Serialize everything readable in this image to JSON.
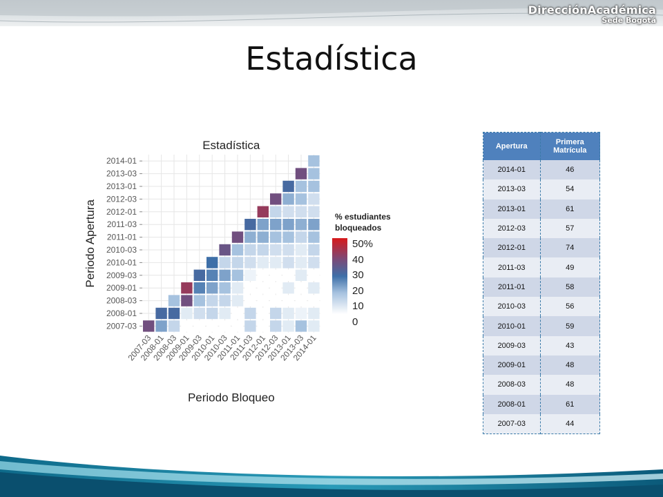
{
  "brand": {
    "name": "DirecciónAcadémica",
    "sub": "Sede Bogotá"
  },
  "slide_title": "Estadística",
  "chart_data": {
    "type": "heatmap",
    "title": "Estadística",
    "xlabel": "Periodo Bloqueo",
    "ylabel": "Periodo Apertura",
    "periods": [
      "2007-03",
      "2008-01",
      "2008-03",
      "2009-01",
      "2009-03",
      "2010-01",
      "2010-03",
      "2011-01",
      "2011-03",
      "2012-01",
      "2012-03",
      "2013-01",
      "2013-03",
      "2014-01"
    ],
    "legend_title": [
      "% estudiantes",
      "bloqueados"
    ],
    "legend_labels": [
      "50%",
      "40",
      "30",
      "20",
      "10",
      "0"
    ],
    "color_scale": {
      "zero": "#ffffff",
      "low": "#a6c2df",
      "mid": "#3e6fa8",
      "high": "#7a4a78",
      "max": "#d7191c"
    },
    "rows": [
      {
        "apertura": "2007-03",
        "values": [
          40,
          20,
          10,
          0,
          0,
          0,
          0,
          0,
          10,
          0,
          10,
          5,
          15,
          5
        ]
      },
      {
        "apertura": "2008-01",
        "values": [
          null,
          30,
          30,
          5,
          8,
          10,
          5,
          0,
          10,
          0,
          10,
          5,
          3,
          5
        ]
      },
      {
        "apertura": "2008-03",
        "values": [
          null,
          null,
          15,
          40,
          15,
          10,
          10,
          5,
          0,
          0,
          0,
          0,
          0,
          0
        ]
      },
      {
        "apertura": "2009-01",
        "values": [
          null,
          null,
          null,
          45,
          25,
          20,
          15,
          5,
          0,
          0,
          0,
          5,
          0,
          5
        ]
      },
      {
        "apertura": "2009-03",
        "values": [
          null,
          null,
          null,
          null,
          30,
          25,
          20,
          15,
          3,
          0,
          0,
          0,
          5,
          0
        ]
      },
      {
        "apertura": "2010-01",
        "values": [
          null,
          null,
          null,
          null,
          null,
          28,
          10,
          10,
          8,
          5,
          5,
          8,
          5,
          8
        ]
      },
      {
        "apertura": "2010-03",
        "values": [
          null,
          null,
          null,
          null,
          null,
          null,
          38,
          15,
          10,
          10,
          8,
          8,
          5,
          10
        ]
      },
      {
        "apertura": "2011-01",
        "values": [
          null,
          null,
          null,
          null,
          null,
          null,
          null,
          40,
          18,
          18,
          15,
          15,
          10,
          15
        ]
      },
      {
        "apertura": "2011-03",
        "values": [
          null,
          null,
          null,
          null,
          null,
          null,
          null,
          null,
          30,
          20,
          20,
          20,
          18,
          20
        ]
      },
      {
        "apertura": "2012-01",
        "values": [
          null,
          null,
          null,
          null,
          null,
          null,
          null,
          null,
          null,
          45,
          10,
          8,
          8,
          8
        ]
      },
      {
        "apertura": "2012-03",
        "values": [
          null,
          null,
          null,
          null,
          null,
          null,
          null,
          null,
          null,
          null,
          40,
          18,
          15,
          8
        ]
      },
      {
        "apertura": "2013-01",
        "values": [
          null,
          null,
          null,
          null,
          null,
          null,
          null,
          null,
          null,
          null,
          null,
          30,
          15,
          15
        ]
      },
      {
        "apertura": "2013-03",
        "values": [
          null,
          null,
          null,
          null,
          null,
          null,
          null,
          null,
          null,
          null,
          null,
          null,
          40,
          15
        ]
      },
      {
        "apertura": "2014-01",
        "values": [
          null,
          null,
          null,
          null,
          null,
          null,
          null,
          null,
          null,
          null,
          null,
          null,
          null,
          15
        ]
      }
    ]
  },
  "table": {
    "headers": [
      "Apertura",
      "Primera\nMatrícula"
    ],
    "rows": [
      [
        "2014-01",
        "46"
      ],
      [
        "2013-03",
        "54"
      ],
      [
        "2013-01",
        "61"
      ],
      [
        "2012-03",
        "57"
      ],
      [
        "2012-01",
        "74"
      ],
      [
        "2011-03",
        "49"
      ],
      [
        "2011-01",
        "58"
      ],
      [
        "2010-03",
        "56"
      ],
      [
        "2010-01",
        "59"
      ],
      [
        "2009-03",
        "43"
      ],
      [
        "2009-01",
        "48"
      ],
      [
        "2008-03",
        "48"
      ],
      [
        "2008-01",
        "61"
      ],
      [
        "2007-03",
        "44"
      ]
    ]
  }
}
